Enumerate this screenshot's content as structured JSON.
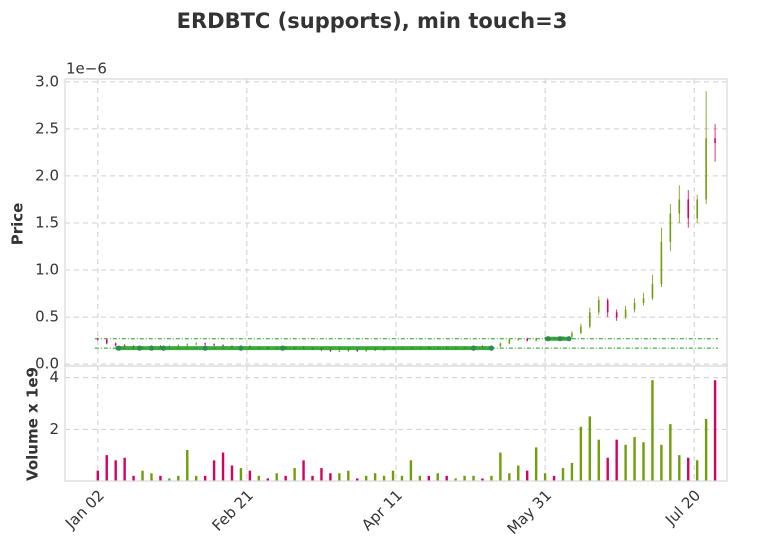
{
  "chart_data": {
    "type": "candlestick",
    "title": "ERDBTC (supports), min touch=3",
    "ylabel": "Price",
    "y_offset_label": "1e−6",
    "volume_label": "Volume x 1e9",
    "up_color": "#6f9e0a",
    "down_color": "#d6005e",
    "support_color": "#1f9e1f",
    "grid": true,
    "xlim": [
      -11,
      211
    ],
    "xticks": [
      {
        "value": 0,
        "label": "Jan 02"
      },
      {
        "value": 50,
        "label": "Feb 21"
      },
      {
        "value": 100,
        "label": "Apr 11"
      },
      {
        "value": 150,
        "label": "May 31"
      },
      {
        "value": 200,
        "label": "Jul 20"
      }
    ],
    "ylim": [
      -0.02,
      3.03
    ],
    "yticks": [
      {
        "value": 0,
        "label": "0.0"
      },
      0.5,
      {
        "value": 1,
        "label": "1.0"
      },
      1.5,
      {
        "value": 2,
        "label": "2.0"
      },
      2.5,
      {
        "value": 3,
        "label": "3.0"
      }
    ],
    "volume_ylim": [
      0,
      4.45
    ],
    "volume_yticks": [
      2,
      4
    ],
    "x": [
      0,
      3,
      6,
      9,
      12,
      15,
      18,
      21,
      24,
      27,
      30,
      33,
      36,
      39,
      42,
      45,
      48,
      51,
      54,
      57,
      60,
      63,
      66,
      69,
      72,
      75,
      78,
      81,
      84,
      87,
      90,
      93,
      96,
      99,
      102,
      105,
      108,
      111,
      114,
      117,
      120,
      123,
      126,
      129,
      132,
      135,
      138,
      141,
      144,
      147,
      150,
      153,
      156,
      159,
      162,
      165,
      168,
      171,
      174,
      177,
      180,
      183,
      186,
      189,
      192,
      195,
      198,
      201,
      204,
      207
    ],
    "open": [
      0.27,
      0.26,
      0.22,
      0.2,
      0.19,
      0.18,
      0.18,
      0.19,
      0.18,
      0.19,
      0.2,
      0.21,
      0.22,
      0.21,
      0.2,
      0.19,
      0.18,
      0.19,
      0.18,
      0.18,
      0.17,
      0.18,
      0.17,
      0.18,
      0.17,
      0.16,
      0.15,
      0.14,
      0.14,
      0.15,
      0.14,
      0.15,
      0.15,
      0.16,
      0.16,
      0.17,
      0.17,
      0.18,
      0.17,
      0.18,
      0.17,
      0.18,
      0.18,
      0.19,
      0.18,
      0.19,
      0.22,
      0.26,
      0.27,
      0.25,
      0.27,
      0.28,
      0.27,
      0.29,
      0.33,
      0.4,
      0.55,
      0.68,
      0.55,
      0.5,
      0.58,
      0.65,
      0.7,
      0.85,
      1.3,
      1.6,
      1.75,
      1.55,
      1.75,
      2.4
    ],
    "high": [
      0.28,
      0.27,
      0.23,
      0.21,
      0.2,
      0.19,
      0.2,
      0.2,
      0.2,
      0.21,
      0.22,
      0.23,
      0.23,
      0.22,
      0.21,
      0.2,
      0.2,
      0.2,
      0.19,
      0.19,
      0.19,
      0.19,
      0.19,
      0.19,
      0.18,
      0.17,
      0.16,
      0.15,
      0.16,
      0.16,
      0.16,
      0.16,
      0.17,
      0.17,
      0.18,
      0.18,
      0.19,
      0.19,
      0.19,
      0.19,
      0.19,
      0.19,
      0.2,
      0.2,
      0.2,
      0.23,
      0.27,
      0.28,
      0.28,
      0.28,
      0.29,
      0.29,
      0.3,
      0.35,
      0.43,
      0.6,
      0.72,
      0.7,
      0.58,
      0.62,
      0.7,
      0.76,
      0.95,
      1.45,
      1.7,
      1.9,
      1.85,
      1.8,
      2.9,
      2.55
    ],
    "low": [
      0.25,
      0.21,
      0.19,
      0.18,
      0.17,
      0.17,
      0.17,
      0.17,
      0.17,
      0.18,
      0.19,
      0.2,
      0.2,
      0.19,
      0.18,
      0.17,
      0.17,
      0.17,
      0.17,
      0.16,
      0.16,
      0.16,
      0.16,
      0.16,
      0.15,
      0.14,
      0.13,
      0.13,
      0.13,
      0.13,
      0.13,
      0.14,
      0.14,
      0.15,
      0.15,
      0.16,
      0.16,
      0.16,
      0.16,
      0.16,
      0.16,
      0.17,
      0.17,
      0.17,
      0.17,
      0.18,
      0.21,
      0.25,
      0.24,
      0.24,
      0.26,
      0.26,
      0.26,
      0.28,
      0.32,
      0.38,
      0.52,
      0.5,
      0.46,
      0.48,
      0.55,
      0.62,
      0.68,
      0.82,
      1.2,
      1.5,
      1.45,
      1.5,
      1.7,
      2.15
    ],
    "close": [
      0.26,
      0.22,
      0.2,
      0.19,
      0.18,
      0.18,
      0.19,
      0.18,
      0.19,
      0.2,
      0.21,
      0.22,
      0.21,
      0.2,
      0.19,
      0.18,
      0.19,
      0.18,
      0.18,
      0.17,
      0.18,
      0.17,
      0.18,
      0.17,
      0.16,
      0.15,
      0.14,
      0.14,
      0.15,
      0.14,
      0.15,
      0.15,
      0.16,
      0.16,
      0.17,
      0.17,
      0.18,
      0.17,
      0.18,
      0.17,
      0.18,
      0.18,
      0.19,
      0.18,
      0.19,
      0.22,
      0.26,
      0.27,
      0.25,
      0.27,
      0.28,
      0.27,
      0.29,
      0.33,
      0.4,
      0.55,
      0.68,
      0.55,
      0.5,
      0.58,
      0.65,
      0.7,
      0.85,
      1.3,
      1.6,
      1.75,
      1.55,
      1.75,
      2.4,
      2.35
    ],
    "volume": [
      0.4,
      1.0,
      0.8,
      0.9,
      0.2,
      0.4,
      0.3,
      0.2,
      0.1,
      0.2,
      1.2,
      0.2,
      0.2,
      0.8,
      1.1,
      0.6,
      0.5,
      0.4,
      0.2,
      0.1,
      0.3,
      0.2,
      0.5,
      0.8,
      0.2,
      0.5,
      0.3,
      0.3,
      0.4,
      0.1,
      0.2,
      0.3,
      0.2,
      0.4,
      0.2,
      0.8,
      0.2,
      0.2,
      0.3,
      0.2,
      0.1,
      0.2,
      0.2,
      0.1,
      0.2,
      1.1,
      0.3,
      0.6,
      0.4,
      1.3,
      0.3,
      0.2,
      0.5,
      0.7,
      2.1,
      2.5,
      1.6,
      0.9,
      1.6,
      1.4,
      1.7,
      1.5,
      3.9,
      1.4,
      2.2,
      1.0,
      0.9,
      0.8,
      2.4,
      3.9
    ],
    "support_levels": [
      0.27,
      0.17
    ],
    "support_segments": [
      {
        "start": 6,
        "end": 132,
        "level": 0.17
      },
      {
        "start": 150,
        "end": 158,
        "level": 0.27
      }
    ],
    "touches": [
      {
        "x": 7,
        "y": 0.17
      },
      {
        "x": 14,
        "y": 0.17
      },
      {
        "x": 18,
        "y": 0.17
      },
      {
        "x": 22,
        "y": 0.17
      },
      {
        "x": 36,
        "y": 0.17
      },
      {
        "x": 48,
        "y": 0.17
      },
      {
        "x": 62,
        "y": 0.17
      },
      {
        "x": 126,
        "y": 0.17
      },
      {
        "x": 132,
        "y": 0.17
      },
      {
        "x": 151,
        "y": 0.27
      },
      {
        "x": 155,
        "y": 0.27
      },
      {
        "x": 158,
        "y": 0.27
      }
    ]
  }
}
